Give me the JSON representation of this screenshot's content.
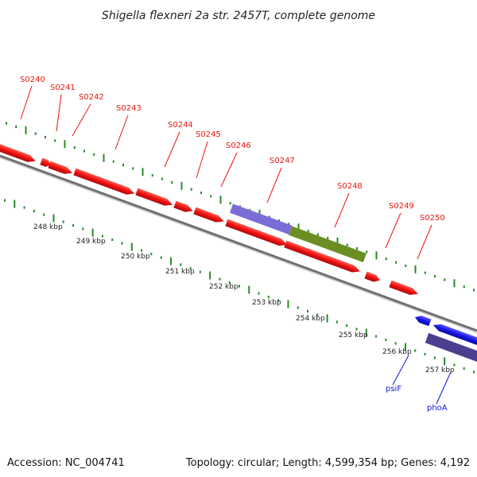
{
  "title": "Shigella flexneri 2a str. 2457T, complete genome",
  "footer": {
    "accession": "Accession: NC_004741",
    "summary": "Topology: circular; Length: 4,599,354 bp; Genes: 4,192"
  },
  "colors": {
    "forward_gene": "#ee1111",
    "reverse_gene": "#1616e6",
    "backbone": "#888888",
    "tick": "#2a8a2a",
    "label_red": "#e8170f",
    "label_blue": "#0a14d6",
    "feature_purple": "#7a6ed6",
    "feature_olive": "#6b8e23",
    "feature_dark": "#4b3f8f"
  },
  "kbp_labels": [
    "248 kbp",
    "249 kbp",
    "250 kbp",
    "251 kbp",
    "252 kbp",
    "253 kbp",
    "254 kbp",
    "255 kbp",
    "256 kbp",
    "257 kbp"
  ],
  "gene_labels": [
    {
      "name": "S0240",
      "strand": "forward"
    },
    {
      "name": "S0241",
      "strand": "forward"
    },
    {
      "name": "S0242",
      "strand": "forward"
    },
    {
      "name": "S0243",
      "strand": "forward"
    },
    {
      "name": "S0244",
      "strand": "forward"
    },
    {
      "name": "S0245",
      "strand": "forward"
    },
    {
      "name": "S0246",
      "strand": "forward"
    },
    {
      "name": "S0247",
      "strand": "forward"
    },
    {
      "name": "S0248",
      "strand": "forward"
    },
    {
      "name": "S0249",
      "strand": "forward"
    },
    {
      "name": "S0250",
      "strand": "forward"
    },
    {
      "name": "psiF",
      "strand": "reverse"
    },
    {
      "name": "phoA",
      "strand": "reverse"
    }
  ]
}
